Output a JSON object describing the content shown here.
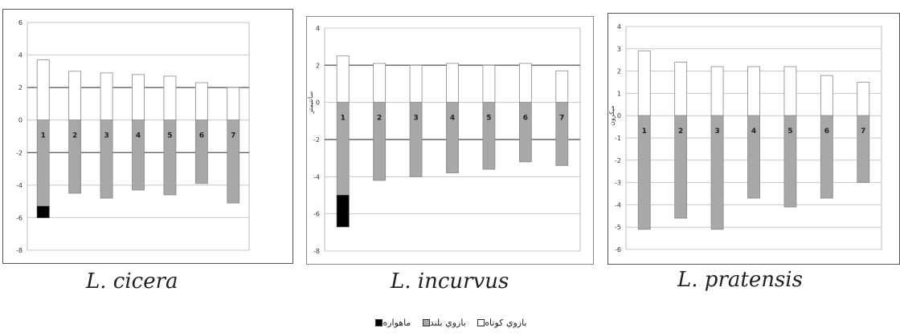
{
  "colors": {
    "long_arm": "#a8a8a8",
    "satellite": "#000000",
    "short_arm": "#ffffff",
    "outline": "#333333"
  },
  "chart_data": [
    {
      "type": "bar",
      "title": "L. cicera",
      "ylabel": "",
      "ylim": [
        -8,
        6
      ],
      "yticks": [
        "6",
        "4",
        "2",
        "0",
        "-2",
        "-4",
        "-6",
        "-8"
      ],
      "categories": [
        "1",
        "2",
        "3",
        "4",
        "5",
        "6",
        "7"
      ],
      "series": [
        {
          "name": "بازوي كوتاه",
          "values": [
            3.7,
            3.0,
            2.9,
            2.8,
            2.7,
            2.3,
            2.0
          ]
        },
        {
          "name": "بازوي بلند",
          "values": [
            -5.3,
            -4.5,
            -4.8,
            -4.3,
            -4.6,
            -3.9,
            -5.1
          ]
        },
        {
          "name": "ماهواره",
          "values": [
            -0.7,
            0,
            0,
            0,
            0,
            0,
            0
          ]
        }
      ],
      "grid": true
    },
    {
      "type": "bar",
      "title": "L. incurvus",
      "ylabel": "سانتيمتر",
      "ylim": [
        -8,
        4
      ],
      "yticks": [
        "4",
        "2",
        "0",
        "-2",
        "-4",
        "-6",
        "-8"
      ],
      "categories": [
        "1",
        "2",
        "3",
        "4",
        "5",
        "6",
        "7"
      ],
      "series": [
        {
          "name": "بازوي كوتاه",
          "values": [
            2.5,
            2.1,
            2.0,
            2.1,
            2.0,
            2.1,
            1.7
          ]
        },
        {
          "name": "بازوي بلند",
          "values": [
            -5.0,
            -4.2,
            -4.0,
            -3.8,
            -3.6,
            -3.2,
            -3.4
          ]
        },
        {
          "name": "ماهواره",
          "values": [
            -1.7,
            0,
            0,
            0,
            0,
            0,
            0
          ]
        }
      ],
      "grid": true
    },
    {
      "type": "bar",
      "title": "L. pratensis",
      "ylabel": "ميكرون",
      "ylim": [
        -6,
        4
      ],
      "yticks": [
        "4",
        "3",
        "2",
        "1",
        "0",
        "-1",
        "-2",
        "-3",
        "-4",
        "-5",
        "-6"
      ],
      "categories": [
        "1",
        "2",
        "3",
        "4",
        "5",
        "6",
        "7"
      ],
      "series": [
        {
          "name": "بازوي كوتاه",
          "values": [
            2.9,
            2.4,
            2.2,
            2.2,
            2.2,
            1.8,
            1.5
          ]
        },
        {
          "name": "بازوي بلند",
          "values": [
            -5.1,
            -4.6,
            -5.1,
            -3.7,
            -4.1,
            -3.7,
            -3.0
          ]
        },
        {
          "name": "ماهواره",
          "values": [
            0,
            0,
            0,
            0,
            0,
            0,
            0
          ]
        }
      ],
      "grid": true
    }
  ],
  "legend": {
    "short_arm": "بازوي كوتاه",
    "long_arm": "بازوي بلند",
    "satellite": "ماهواره"
  }
}
